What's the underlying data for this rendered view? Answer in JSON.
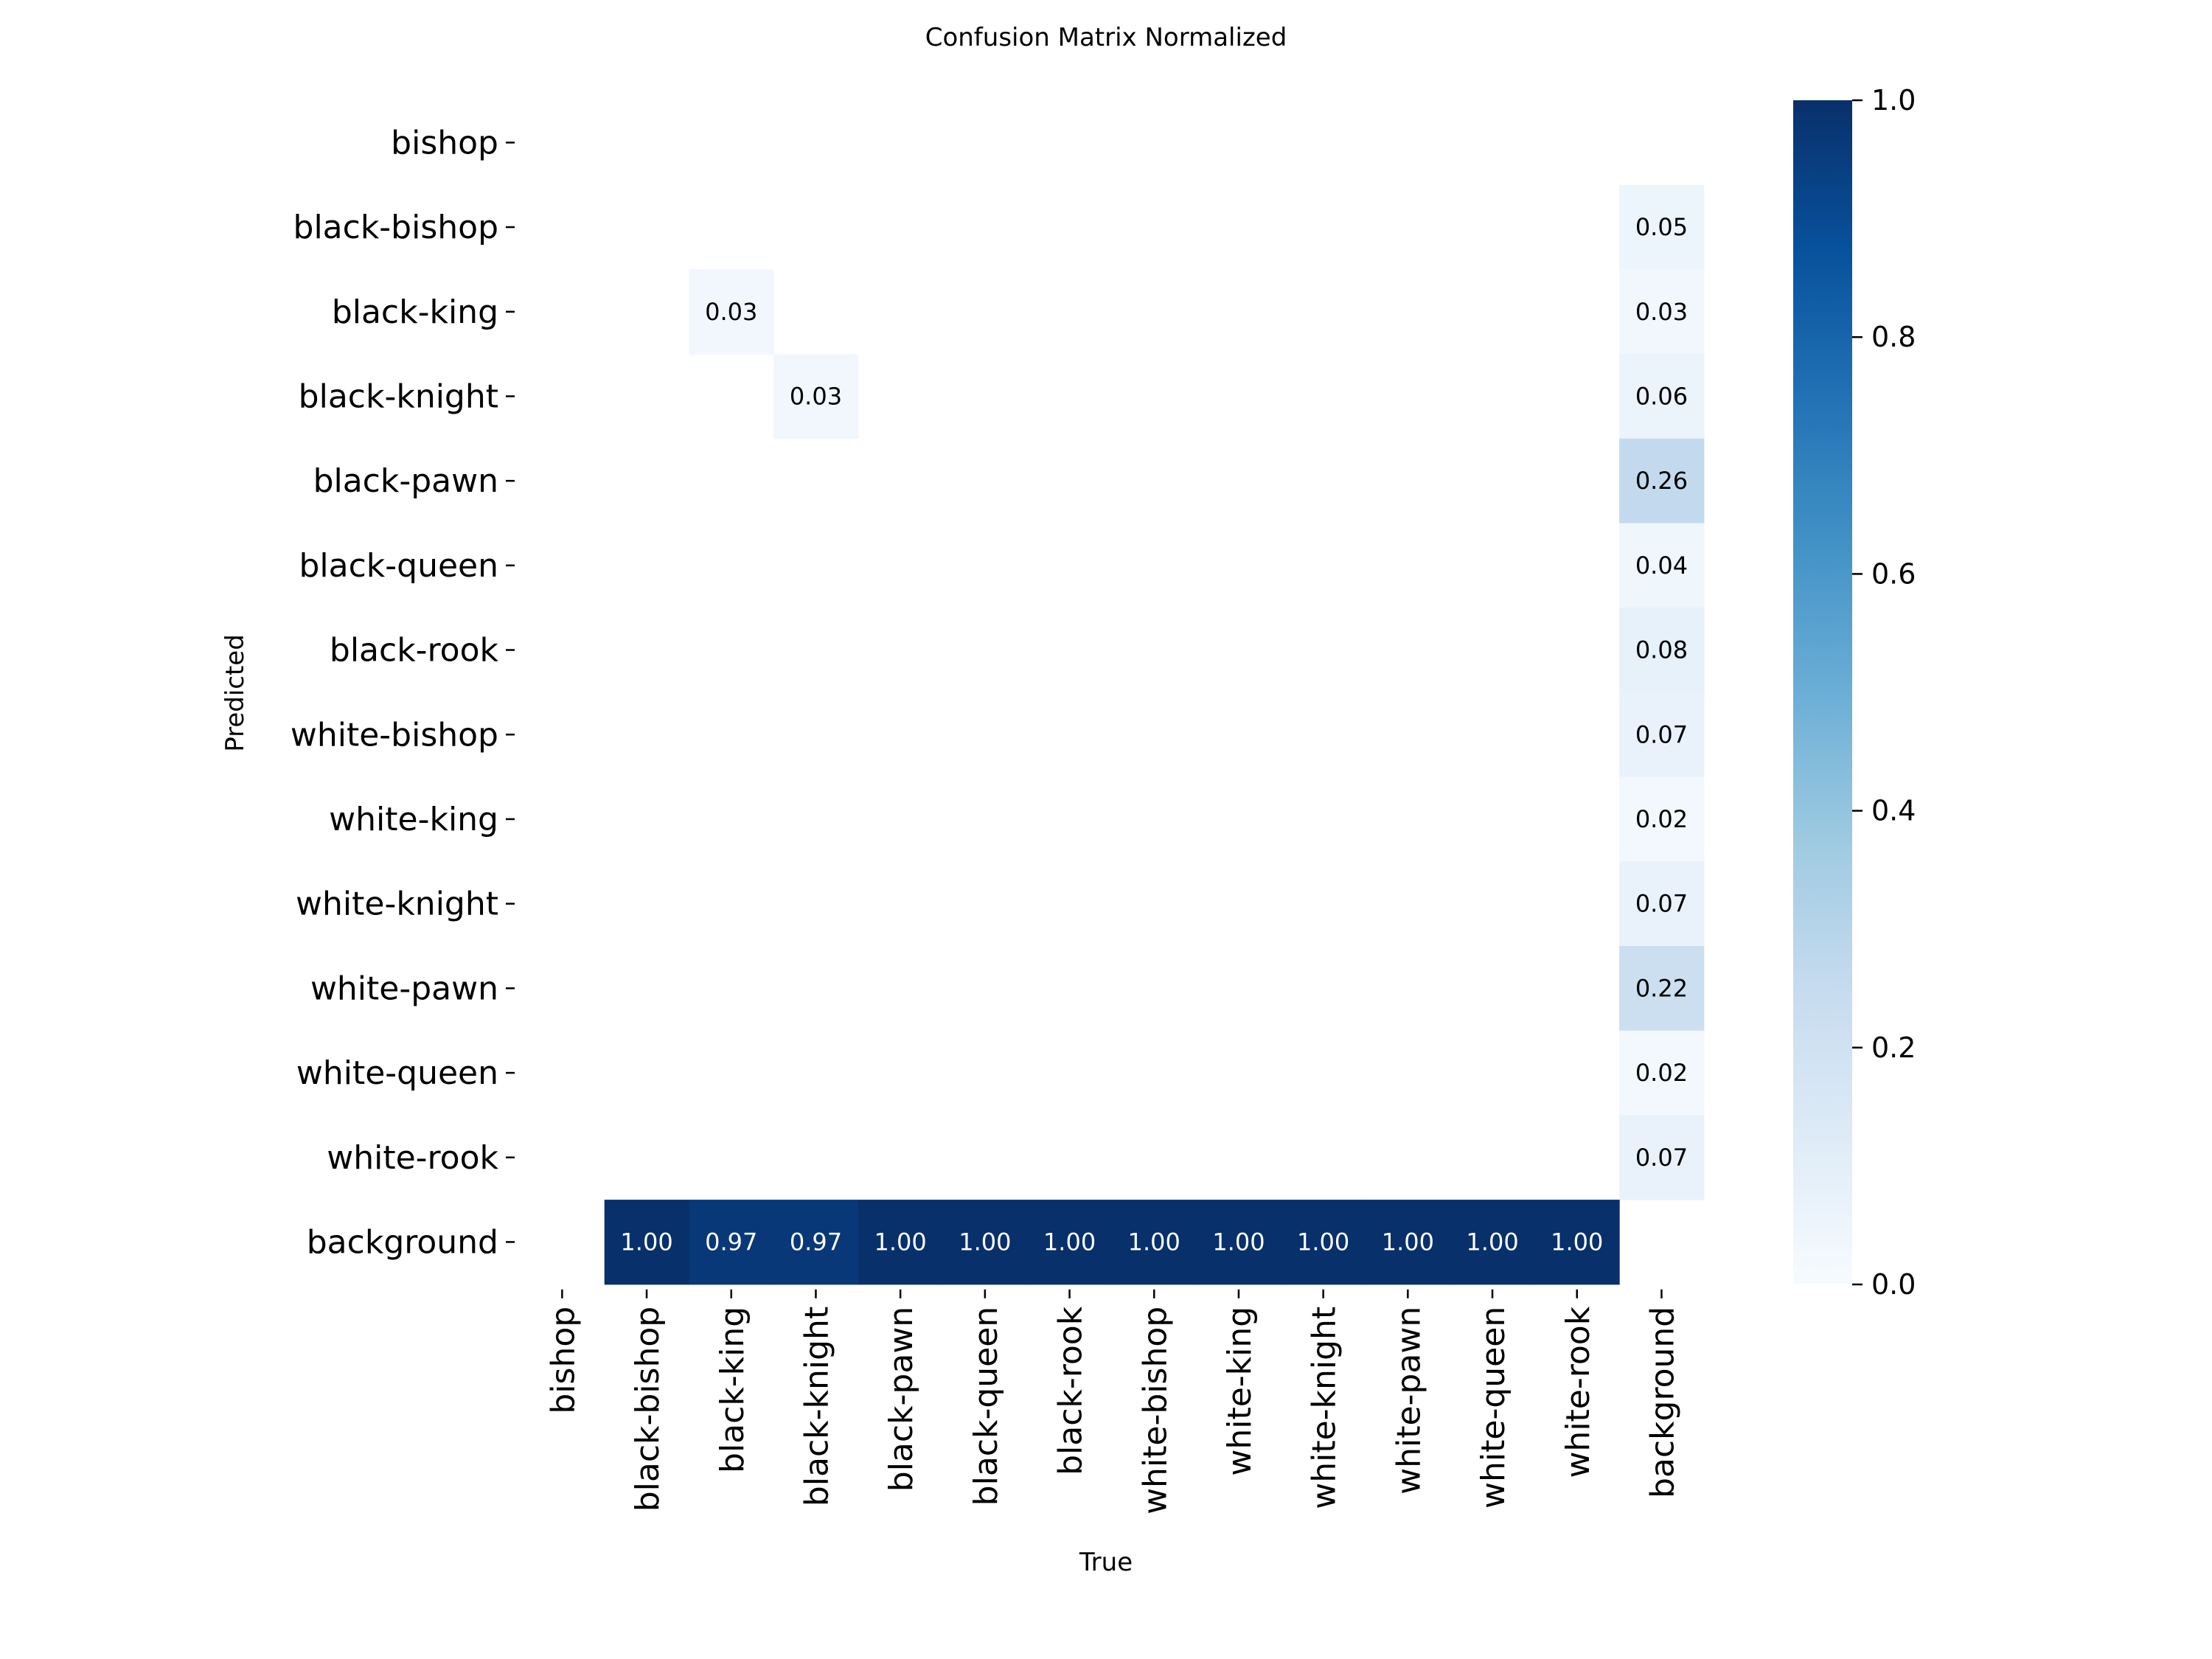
{
  "chart_data": {
    "type": "heatmap",
    "title": "Confusion Matrix Normalized",
    "xlabel": "True",
    "ylabel": "Predicted",
    "x_categories": [
      "bishop",
      "black-bishop",
      "black-king",
      "black-knight",
      "black-pawn",
      "black-queen",
      "black-rook",
      "white-bishop",
      "white-king",
      "white-knight",
      "white-pawn",
      "white-queen",
      "white-rook",
      "background"
    ],
    "y_categories": [
      "bishop",
      "black-bishop",
      "black-king",
      "black-knight",
      "black-pawn",
      "black-queen",
      "black-rook",
      "white-bishop",
      "white-king",
      "white-knight",
      "white-pawn",
      "white-queen",
      "white-rook",
      "background"
    ],
    "values": [
      [
        null,
        null,
        null,
        null,
        null,
        null,
        null,
        null,
        null,
        null,
        null,
        null,
        null,
        null
      ],
      [
        null,
        null,
        null,
        null,
        null,
        null,
        null,
        null,
        null,
        null,
        null,
        null,
        null,
        0.05
      ],
      [
        null,
        null,
        0.03,
        null,
        null,
        null,
        null,
        null,
        null,
        null,
        null,
        null,
        null,
        0.03
      ],
      [
        null,
        null,
        null,
        0.03,
        null,
        null,
        null,
        null,
        null,
        null,
        null,
        null,
        null,
        0.06
      ],
      [
        null,
        null,
        null,
        null,
        null,
        null,
        null,
        null,
        null,
        null,
        null,
        null,
        null,
        0.26
      ],
      [
        null,
        null,
        null,
        null,
        null,
        null,
        null,
        null,
        null,
        null,
        null,
        null,
        null,
        0.04
      ],
      [
        null,
        null,
        null,
        null,
        null,
        null,
        null,
        null,
        null,
        null,
        null,
        null,
        null,
        0.08
      ],
      [
        null,
        null,
        null,
        null,
        null,
        null,
        null,
        null,
        null,
        null,
        null,
        null,
        null,
        0.07
      ],
      [
        null,
        null,
        null,
        null,
        null,
        null,
        null,
        null,
        null,
        null,
        null,
        null,
        null,
        0.02
      ],
      [
        null,
        null,
        null,
        null,
        null,
        null,
        null,
        null,
        null,
        null,
        null,
        null,
        null,
        0.07
      ],
      [
        null,
        null,
        null,
        null,
        null,
        null,
        null,
        null,
        null,
        null,
        null,
        null,
        null,
        0.22
      ],
      [
        null,
        null,
        null,
        null,
        null,
        null,
        null,
        null,
        null,
        null,
        null,
        null,
        null,
        0.02
      ],
      [
        null,
        null,
        null,
        null,
        null,
        null,
        null,
        null,
        null,
        null,
        null,
        null,
        null,
        0.07
      ],
      [
        null,
        1.0,
        0.97,
        0.97,
        1.0,
        1.0,
        1.0,
        1.0,
        1.0,
        1.0,
        1.0,
        1.0,
        1.0,
        null
      ]
    ],
    "colorbar": {
      "range": [
        0,
        1
      ],
      "ticks": [
        "0.0",
        "0.2",
        "0.4",
        "0.6",
        "0.8",
        "1.0"
      ],
      "colormap": "Blues"
    }
  }
}
